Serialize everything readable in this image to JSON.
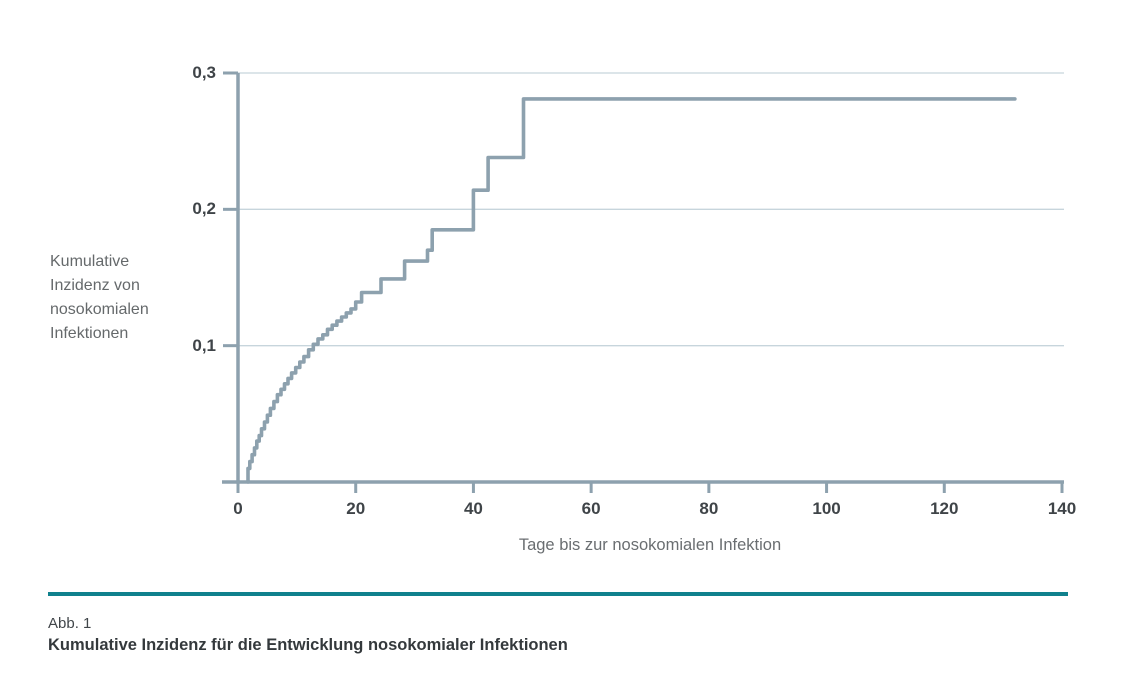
{
  "chart_data": {
    "type": "line",
    "subtype": "step-after",
    "title": "",
    "xlabel": "Tage bis zur nosokomialen Infektion",
    "ylabel_lines": [
      "Kumulative",
      "Inzidenz von",
      "nosokomialen",
      "Infektionen"
    ],
    "xlim": [
      0,
      140
    ],
    "ylim": [
      0,
      0.3
    ],
    "grid": "horizontal-only",
    "legend": "none",
    "x_ticks": [
      {
        "value": 0,
        "label": "0"
      },
      {
        "value": 20,
        "label": "20"
      },
      {
        "value": 40,
        "label": "40"
      },
      {
        "value": 60,
        "label": "60"
      },
      {
        "value": 80,
        "label": "80"
      },
      {
        "value": 100,
        "label": "100"
      },
      {
        "value": 120,
        "label": "120"
      },
      {
        "value": 140,
        "label": "140"
      }
    ],
    "y_ticks": [
      {
        "value": 0.1,
        "label": "0,1"
      },
      {
        "value": 0.2,
        "label": "0,2"
      },
      {
        "value": 0.3,
        "label": "0,3"
      }
    ],
    "series": [
      {
        "name": "Kumulative Inzidenz von nosokomialen Infektionen",
        "points": [
          [
            1.7,
            0.0
          ],
          [
            2.0,
            0.01
          ],
          [
            2.4,
            0.015
          ],
          [
            2.8,
            0.02
          ],
          [
            3.2,
            0.025
          ],
          [
            3.6,
            0.03
          ],
          [
            4.0,
            0.034
          ],
          [
            4.5,
            0.039
          ],
          [
            5.0,
            0.044
          ],
          [
            5.5,
            0.049
          ],
          [
            6.1,
            0.054
          ],
          [
            6.7,
            0.059
          ],
          [
            7.3,
            0.064
          ],
          [
            7.9,
            0.068
          ],
          [
            8.5,
            0.072
          ],
          [
            9.1,
            0.076
          ],
          [
            9.8,
            0.08
          ],
          [
            10.5,
            0.084
          ],
          [
            11.2,
            0.088
          ],
          [
            12.0,
            0.092
          ],
          [
            12.8,
            0.097
          ],
          [
            13.6,
            0.101
          ],
          [
            14.4,
            0.105
          ],
          [
            15.2,
            0.108
          ],
          [
            16.0,
            0.112
          ],
          [
            16.8,
            0.115
          ],
          [
            17.6,
            0.118
          ],
          [
            18.4,
            0.121
          ],
          [
            19.2,
            0.124
          ],
          [
            20.0,
            0.127
          ],
          [
            21.0,
            0.132
          ],
          [
            24.3,
            0.139
          ],
          [
            28.3,
            0.149
          ],
          [
            32.2,
            0.162
          ],
          [
            33.0,
            0.17
          ],
          [
            40.0,
            0.185
          ],
          [
            42.5,
            0.214
          ],
          [
            48.5,
            0.238
          ],
          [
            66.0,
            0.281
          ],
          [
            132.0,
            0.281
          ]
        ]
      }
    ]
  },
  "caption": {
    "label": "Abb. 1",
    "title": "Kumulative Inzidenz für die Entwicklung nosokomialer Infektionen"
  },
  "colors": {
    "curve": "#8da1ae",
    "axis": "#8da1ae",
    "grid": "#c7d5dc",
    "divider_teal": "#10818d",
    "tick_text": "#3f4448",
    "label_text": "#65696b"
  }
}
